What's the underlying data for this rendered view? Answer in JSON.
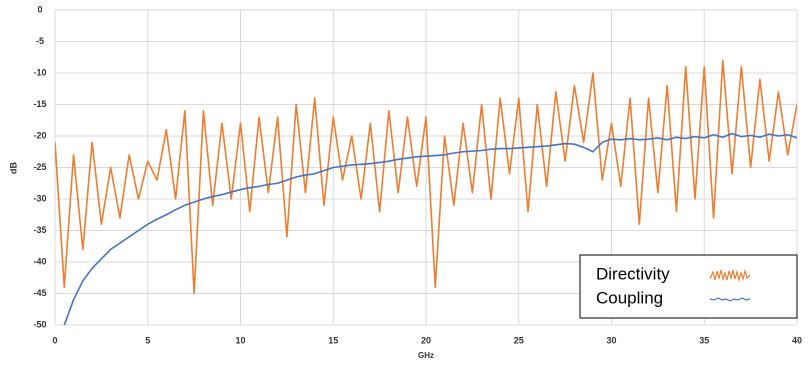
{
  "chart_data": {
    "type": "line",
    "x_label": "GHz",
    "y_label": "dB",
    "x": [
      0,
      0.5,
      1,
      1.5,
      2,
      2.5,
      3,
      3.5,
      4,
      4.5,
      5,
      5.5,
      6,
      6.5,
      7,
      7.5,
      8,
      8.5,
      9,
      9.5,
      10,
      10.5,
      11,
      11.5,
      12,
      12.5,
      13,
      13.5,
      14,
      14.5,
      15,
      15.5,
      16,
      16.5,
      17,
      17.5,
      18,
      18.5,
      19,
      19.5,
      20,
      20.5,
      21,
      21.5,
      22,
      22.5,
      23,
      23.5,
      24,
      24.5,
      25,
      25.5,
      26,
      26.5,
      27,
      27.5,
      28,
      28.5,
      29,
      29.5,
      30,
      30.5,
      31,
      31.5,
      32,
      32.5,
      33,
      33.5,
      34,
      34.5,
      35,
      35.5,
      36,
      36.5,
      37,
      37.5,
      38,
      38.5,
      39,
      39.5,
      40
    ],
    "series": [
      {
        "name": "Directivity",
        "color": "#ed7d31",
        "values": [
          -21,
          -44,
          -23,
          -38,
          -21,
          -34,
          -25,
          -33,
          -23,
          -30,
          -24,
          -27,
          -19,
          -30,
          -16,
          -45,
          -16,
          -31,
          -18,
          -30,
          -18,
          -32,
          -17,
          -29,
          -17,
          -36,
          -15,
          -29,
          -14,
          -31,
          -17,
          -27,
          -20,
          -30,
          -18,
          -32,
          -16,
          -29,
          -17,
          -28,
          -17,
          -44,
          -20,
          -31,
          -18,
          -29,
          -15,
          -30,
          -14,
          -26,
          -14,
          -32,
          -15,
          -28,
          -13,
          -24,
          -12,
          -21,
          -10,
          -27,
          -18,
          -28,
          -14,
          -34,
          -14,
          -29,
          -12,
          -32,
          -9,
          -30,
          -9,
          -33,
          -8,
          -26,
          -9,
          -25,
          -11,
          -24,
          -13,
          -23,
          -15
        ]
      },
      {
        "name": "Coupling",
        "color": "#4472c4",
        "values": [
          null,
          -50,
          -46,
          -43,
          -41,
          -39.5,
          -38,
          -37,
          -36,
          -35,
          -34,
          -33.2,
          -32.5,
          -31.7,
          -31,
          -30.5,
          -30,
          -29.6,
          -29.3,
          -28.9,
          -28.5,
          -28.2,
          -28,
          -27.7,
          -27.5,
          -27,
          -26.5,
          -26.2,
          -26,
          -25.5,
          -25,
          -24.8,
          -24.6,
          -24.5,
          -24.4,
          -24.2,
          -24,
          -23.7,
          -23.5,
          -23.3,
          -23.2,
          -23.1,
          -23,
          -22.7,
          -22.5,
          -22.4,
          -22.3,
          -22.1,
          -22,
          -22,
          -21.9,
          -21.8,
          -21.7,
          -21.6,
          -21.4,
          -21.2,
          -21.3,
          -21.8,
          -22.5,
          -21,
          -20.5,
          -20.6,
          -20.4,
          -20.6,
          -20.5,
          -20.3,
          -20.6,
          -20.2,
          -20.4,
          -20.1,
          -20.3,
          -19.8,
          -20.2,
          -19.6,
          -20.1,
          -19.9,
          -20.2,
          -19.7,
          -20,
          -19.8,
          -20.3
        ]
      }
    ],
    "xlim": [
      0,
      40
    ],
    "xticks": [
      0,
      5,
      10,
      15,
      20,
      25,
      30,
      35,
      40
    ],
    "ylim": [
      -50,
      0
    ],
    "yticks": [
      0,
      -5,
      -10,
      -15,
      -20,
      -25,
      -30,
      -35,
      -40,
      -45,
      -50
    ],
    "grid": true,
    "legend_position": "lower right"
  }
}
